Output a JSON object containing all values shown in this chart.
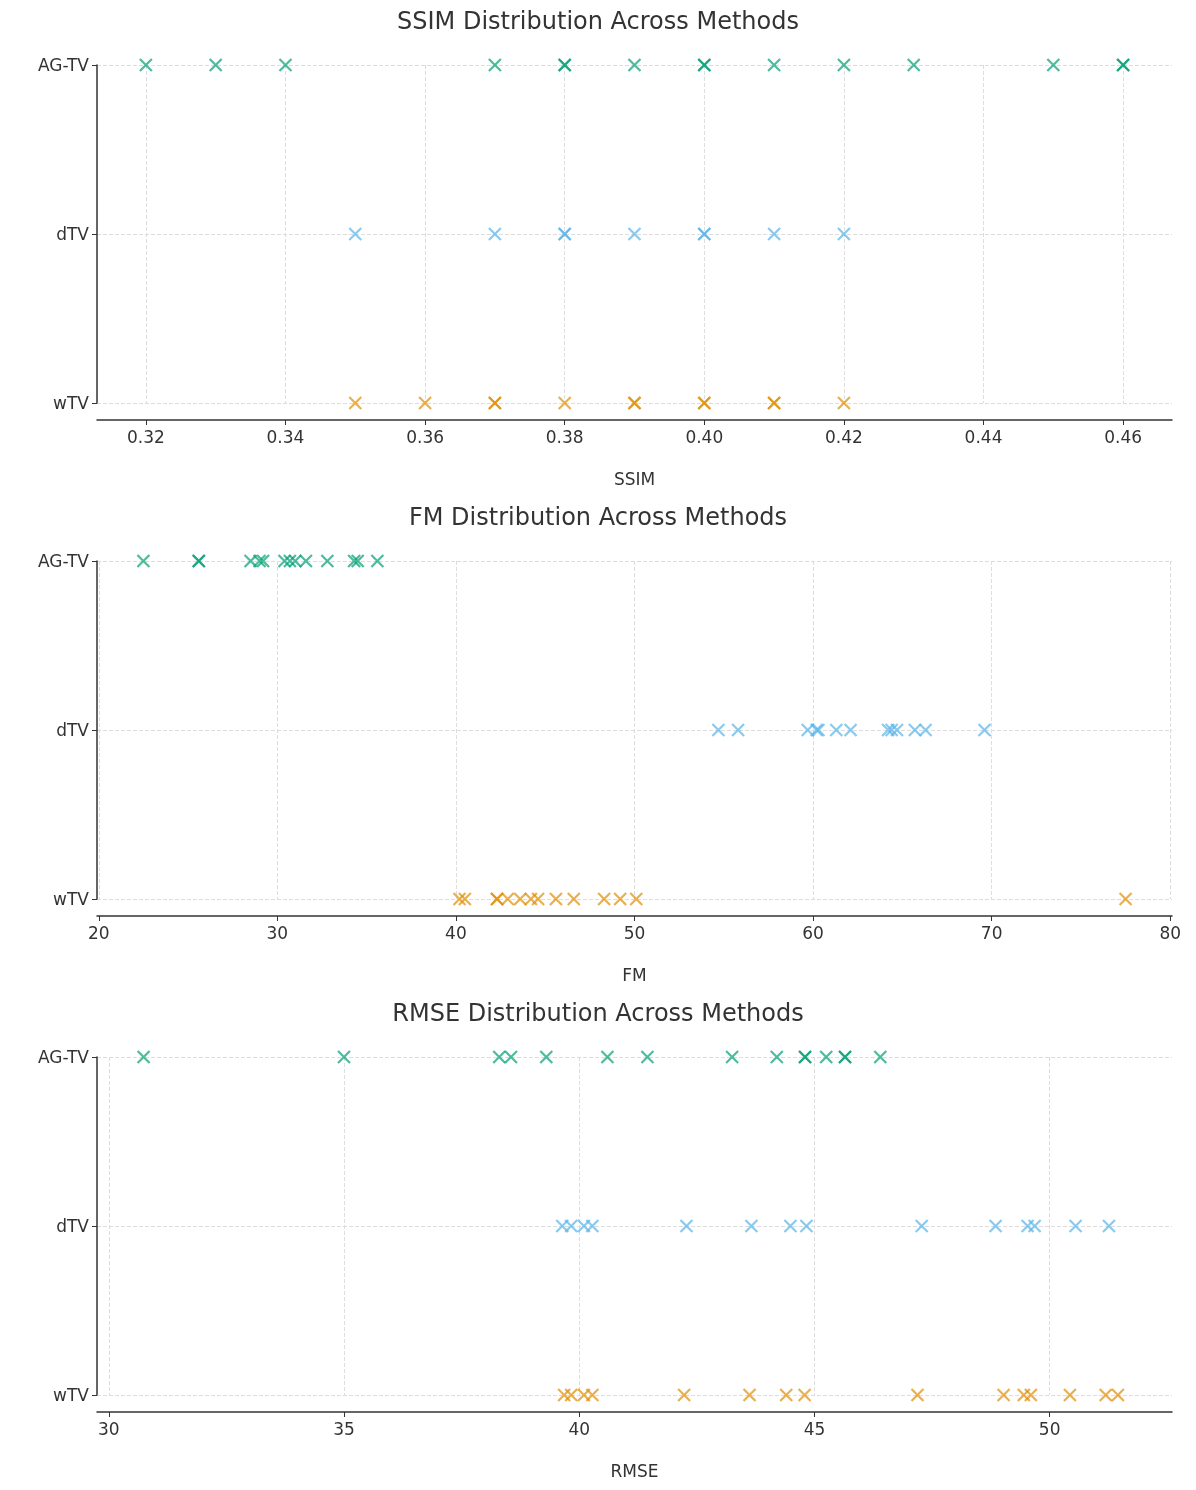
{
  "chart_data": [
    {
      "type": "scatter",
      "title": "SSIM Distribution Across Methods",
      "xlabel": "SSIM",
      "orientation": "horizontal",
      "categories": [
        "AG-TV",
        "dTV",
        "wTV"
      ],
      "xlim": [
        0.313,
        0.467
      ],
      "xticks": [
        0.32,
        0.34,
        0.36,
        0.38,
        {
          "value": 0.4,
          "label": "0.40"
        },
        0.42,
        0.44,
        0.46
      ],
      "grid": true,
      "marker": "cross",
      "series": [
        {
          "color": "#029e73",
          "x": [
            "AG-TV",
            "AG-TV",
            "AG-TV",
            "AG-TV",
            "AG-TV",
            "AG-TV",
            "AG-TV",
            "AG-TV",
            "AG-TV",
            "AG-TV",
            "AG-TV",
            "AG-TV",
            "AG-TV",
            "AG-TV",
            "AG-TV"
          ],
          "values": [
            0.32,
            0.33,
            0.34,
            0.37,
            0.38,
            0.38,
            0.39,
            0.4,
            0.4,
            0.41,
            0.42,
            0.43,
            0.45,
            0.46,
            0.46
          ]
        },
        {
          "color": "#56b4e9",
          "x": [
            "dTV",
            "dTV",
            "dTV",
            "dTV",
            "dTV",
            "dTV",
            "dTV",
            "dTV",
            "dTV"
          ],
          "values": [
            0.35,
            0.37,
            0.38,
            0.38,
            0.39,
            0.4,
            0.4,
            0.41,
            0.42
          ]
        },
        {
          "color": "#de8f05",
          "x": [
            "wTV",
            "wTV",
            "wTV",
            "wTV",
            "wTV",
            "wTV",
            "wTV",
            "wTV",
            "wTV",
            "wTV",
            "wTV",
            "wTV"
          ],
          "values": [
            0.35,
            0.36,
            0.37,
            0.37,
            0.38,
            0.39,
            0.39,
            0.4,
            0.4,
            0.41,
            0.41,
            0.42
          ]
        }
      ]
    },
    {
      "type": "scatter",
      "title": "FM Distribution Across Methods",
      "xlabel": "FM",
      "orientation": "horizontal",
      "categories": [
        "AG-TV",
        "dTV",
        "wTV"
      ],
      "xlim": [
        19.9,
        80.1
      ],
      "xticks": [
        20,
        30,
        40,
        50,
        60,
        70,
        80
      ],
      "grid": true,
      "marker": "cross",
      "series": [
        {
          "color": "#029e73",
          "x": [
            "AG-TV",
            "AG-TV",
            "AG-TV",
            "AG-TV",
            "AG-TV",
            "AG-TV",
            "AG-TV",
            "AG-TV",
            "AG-TV",
            "AG-TV",
            "AG-TV",
            "AG-TV",
            "AG-TV",
            "AG-TV"
          ],
          "values": [
            22.5,
            25.6,
            25.6,
            28.5,
            29.0,
            29.2,
            30.4,
            30.7,
            31.0,
            31.6,
            32.8,
            34.3,
            34.5,
            35.6
          ]
        },
        {
          "color": "#56b4e9",
          "x": [
            "dTV",
            "dTV",
            "dTV",
            "dTV",
            "dTV",
            "dTV",
            "dTV",
            "dTV",
            "dTV",
            "dTV",
            "dTV",
            "dTV",
            "dTV"
          ],
          "values": [
            54.7,
            55.8,
            59.7,
            60.2,
            60.3,
            61.3,
            62.1,
            64.2,
            64.4,
            64.7,
            65.7,
            66.3,
            69.6
          ]
        },
        {
          "color": "#de8f05",
          "x": [
            "wTV",
            "wTV",
            "wTV",
            "wTV",
            "wTV",
            "wTV",
            "wTV",
            "wTV",
            "wTV",
            "wTV",
            "wTV",
            "wTV",
            "wTV",
            "wTV"
          ],
          "values": [
            40.2,
            40.5,
            42.3,
            42.3,
            42.9,
            43.6,
            44.2,
            44.6,
            45.6,
            46.6,
            48.3,
            49.2,
            50.1,
            77.5
          ]
        }
      ]
    },
    {
      "type": "scatter",
      "title": "RMSE Distribution Across Methods",
      "xlabel": "RMSE",
      "orientation": "horizontal",
      "categories": [
        "AG-TV",
        "dTV",
        "wTV"
      ],
      "xlim": [
        29.75,
        52.6
      ],
      "xticks": [
        30,
        35,
        40,
        45,
        50
      ],
      "grid": true,
      "marker": "cross",
      "series": [
        {
          "color": "#029e73",
          "x": [
            "AG-TV",
            "AG-TV",
            "AG-TV",
            "AG-TV",
            "AG-TV",
            "AG-TV",
            "AG-TV",
            "AG-TV",
            "AG-TV",
            "AG-TV",
            "AG-TV",
            "AG-TV",
            "AG-TV",
            "AG-TV",
            "AG-TV"
          ],
          "values": [
            30.74,
            35.0,
            38.3,
            38.55,
            39.3,
            40.6,
            41.45,
            43.25,
            44.2,
            44.8,
            44.8,
            45.25,
            45.65,
            45.65,
            46.4
          ]
        },
        {
          "color": "#56b4e9",
          "x": [
            "dTV",
            "dTV",
            "dTV",
            "dTV",
            "dTV",
            "dTV",
            "dTV",
            "dTV",
            "dTV",
            "dTV",
            "dTV",
            "dTV",
            "dTV",
            "dTV"
          ],
          "values": [
            39.64,
            39.83,
            40.1,
            40.28,
            42.28,
            43.66,
            44.49,
            44.83,
            47.28,
            48.85,
            49.53,
            49.68,
            50.55,
            51.26
          ]
        },
        {
          "color": "#de8f05",
          "x": [
            "wTV",
            "wTV",
            "wTV",
            "wTV",
            "wTV",
            "wTV",
            "wTV",
            "wTV",
            "wTV",
            "wTV",
            "wTV",
            "wTV",
            "wTV",
            "wTV",
            "wTV"
          ],
          "values": [
            39.68,
            39.83,
            40.1,
            40.28,
            42.23,
            43.62,
            44.4,
            44.79,
            47.19,
            49.02,
            49.45,
            49.6,
            50.43,
            51.19,
            51.45
          ]
        }
      ]
    }
  ]
}
